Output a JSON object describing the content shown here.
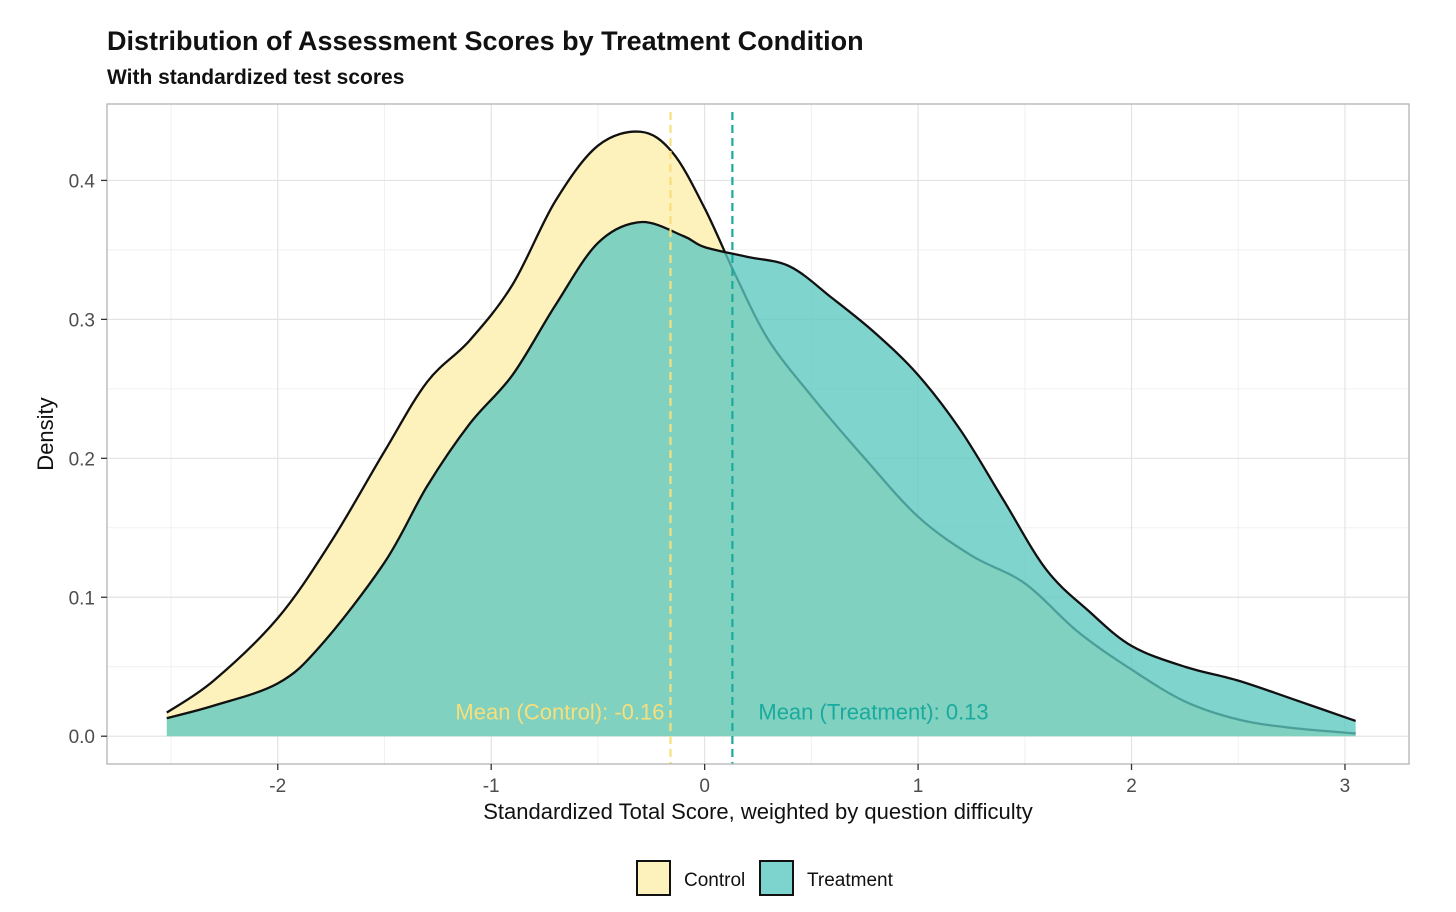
{
  "chart_data": {
    "type": "area",
    "title": "Distribution of Assessment Scores by Treatment Condition",
    "subtitle": "With standardized test scores",
    "xlabel": "Standardized Total Score, weighted by question difficulty",
    "ylabel": "Density",
    "xlim": [
      -2.8,
      3.3
    ],
    "ylim": [
      -0.02,
      0.455
    ],
    "xticks": [
      -2,
      -1,
      0,
      1,
      2,
      3
    ],
    "xtick_labels": [
      "-2",
      "-1",
      "0",
      "1",
      "2",
      "3"
    ],
    "yticks": [
      0.0,
      0.1,
      0.2,
      0.3,
      0.4
    ],
    "ytick_labels": [
      "0.0",
      "0.1",
      "0.2",
      "0.3",
      "0.4"
    ],
    "grid": true,
    "legend_position": "bottom",
    "series": [
      {
        "name": "Control",
        "color": "#fdf0b8",
        "x": [
          -2.52,
          -2.3,
          -2.0,
          -1.75,
          -1.5,
          -1.3,
          -1.1,
          -0.9,
          -0.7,
          -0.5,
          -0.3,
          -0.15,
          0.0,
          0.15,
          0.3,
          0.5,
          0.75,
          1.0,
          1.25,
          1.5,
          1.75,
          2.0,
          2.25,
          2.5,
          2.75,
          3.05
        ],
        "y": [
          0.017,
          0.04,
          0.085,
          0.14,
          0.205,
          0.255,
          0.285,
          0.325,
          0.385,
          0.425,
          0.435,
          0.42,
          0.38,
          0.33,
          0.285,
          0.245,
          0.2,
          0.158,
          0.13,
          0.11,
          0.075,
          0.048,
          0.025,
          0.012,
          0.006,
          0.002
        ]
      },
      {
        "name": "Treatment",
        "color": "#5cc8c0",
        "x": [
          -2.52,
          -2.3,
          -2.0,
          -1.8,
          -1.5,
          -1.3,
          -1.1,
          -0.9,
          -0.7,
          -0.5,
          -0.3,
          -0.1,
          0.0,
          0.2,
          0.4,
          0.6,
          0.8,
          1.0,
          1.2,
          1.4,
          1.6,
          1.8,
          2.0,
          2.25,
          2.5,
          2.75,
          3.05
        ],
        "y": [
          0.013,
          0.022,
          0.038,
          0.065,
          0.125,
          0.18,
          0.225,
          0.26,
          0.31,
          0.355,
          0.37,
          0.36,
          0.352,
          0.345,
          0.338,
          0.315,
          0.29,
          0.26,
          0.22,
          0.17,
          0.12,
          0.09,
          0.065,
          0.05,
          0.04,
          0.027,
          0.011
        ]
      }
    ],
    "annotations": [
      {
        "x": -0.16,
        "label": "Mean (Control): -0.16",
        "color": "#f7df7c",
        "side": "left"
      },
      {
        "x": 0.13,
        "label": "Mean (Treatment): 0.13",
        "color": "#1aaa9e",
        "side": "right"
      }
    ]
  }
}
